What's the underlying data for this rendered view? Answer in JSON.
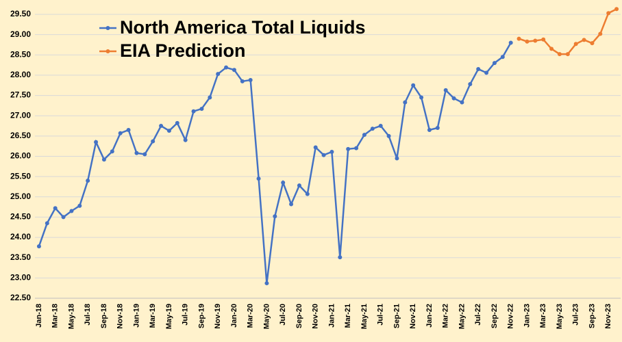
{
  "chart_data": {
    "type": "line",
    "categories": [
      "Jan-18",
      null,
      "Mar-18",
      null,
      "May-18",
      null,
      "Jul-18",
      null,
      "Sep-18",
      null,
      "Nov-18",
      null,
      "Jan-19",
      null,
      "Mar-19",
      null,
      "May-19",
      null,
      "Jul-19",
      null,
      "Sep-19",
      null,
      "Nov-19",
      null,
      "Jan-20",
      null,
      "Mar-20",
      null,
      "May-20",
      null,
      "Jul-20",
      null,
      "Sep-20",
      null,
      "Nov-20",
      null,
      "Jan-21",
      null,
      "Mar-21",
      null,
      "May-21",
      null,
      "Jul-21",
      null,
      "Sep-21",
      null,
      "Nov-21",
      null,
      "Jan-22",
      null,
      "Mar-22",
      null,
      "May-22",
      null,
      "Jul-22",
      null,
      "Sep-22",
      null,
      "Nov-22",
      null,
      "Jan-23",
      null,
      "Mar-23",
      null,
      "May-23",
      null,
      "Jul-23",
      null,
      "Sep-23",
      null,
      "Nov-23",
      null
    ],
    "series": [
      {
        "name": "North America Total Liquids",
        "color": "#4472c4",
        "values": [
          23.78,
          24.35,
          24.72,
          24.5,
          24.65,
          24.78,
          25.4,
          26.35,
          25.92,
          26.12,
          26.57,
          26.65,
          26.08,
          26.05,
          26.37,
          26.75,
          26.63,
          26.82,
          26.4,
          27.11,
          27.17,
          27.45,
          28.03,
          28.19,
          28.13,
          27.85,
          27.88,
          25.45,
          22.87,
          24.52,
          25.35,
          24.82,
          25.28,
          25.07,
          26.22,
          26.03,
          26.11,
          23.51,
          26.18,
          26.2,
          26.53,
          26.68,
          26.75,
          26.5,
          25.95,
          27.33,
          27.75,
          27.45,
          26.65,
          26.7,
          27.63,
          27.43,
          27.33,
          27.78,
          28.15,
          28.06,
          28.3,
          28.45,
          28.8,
          null,
          null,
          null,
          null,
          null,
          null,
          null,
          null,
          null,
          null,
          null,
          null,
          null
        ]
      },
      {
        "name": "EIA Prediction",
        "color": "#ed7d31",
        "values": [
          null,
          null,
          null,
          null,
          null,
          null,
          null,
          null,
          null,
          null,
          null,
          null,
          null,
          null,
          null,
          null,
          null,
          null,
          null,
          null,
          null,
          null,
          null,
          null,
          null,
          null,
          null,
          null,
          null,
          null,
          null,
          null,
          null,
          null,
          null,
          null,
          null,
          null,
          null,
          null,
          null,
          null,
          null,
          null,
          null,
          null,
          null,
          null,
          null,
          null,
          null,
          null,
          null,
          null,
          null,
          null,
          null,
          null,
          null,
          28.9,
          28.83,
          28.85,
          28.88,
          28.65,
          28.52,
          28.52,
          28.77,
          28.87,
          28.79,
          29.02,
          29.53,
          29.63
        ]
      }
    ],
    "ylim": [
      22.5,
      29.65
    ],
    "yticks": [
      {
        "value": 22.5,
        "label": "22.50"
      },
      {
        "value": 23,
        "label": "23.00"
      },
      {
        "value": 23.5,
        "label": "23.50"
      },
      {
        "value": 24,
        "label": "24.00"
      },
      {
        "value": 24.5,
        "label": "24.50"
      },
      {
        "value": 25,
        "label": "25.00"
      },
      {
        "value": 25.5,
        "label": "25.50"
      },
      {
        "value": 26,
        "label": "26.00"
      },
      {
        "value": 26.5,
        "label": "26.50"
      },
      {
        "value": 27,
        "label": "27.00"
      },
      {
        "value": 27.5,
        "label": "27.50"
      },
      {
        "value": 28,
        "label": "28.00"
      },
      {
        "value": 28.5,
        "label": "28.50"
      },
      {
        "value": 29,
        "label": "29.00"
      },
      {
        "value": 29.5,
        "label": "29.50"
      }
    ],
    "grid": true,
    "legend": "upper left"
  }
}
